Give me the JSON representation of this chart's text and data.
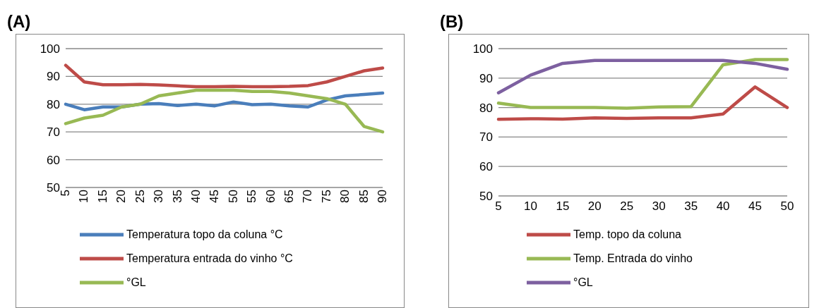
{
  "chart_data": [
    {
      "type": "line",
      "title": "(A)",
      "categories": [
        "5",
        "10",
        "15",
        "20",
        "25",
        "30",
        "35",
        "40",
        "45",
        "50",
        "55",
        "60",
        "65",
        "70",
        "75",
        "80",
        "85",
        "90"
      ],
      "ylim": [
        50,
        100
      ],
      "yticks": [
        50,
        60,
        70,
        80,
        90,
        100
      ],
      "grid": "y",
      "legend": "bottom",
      "marker": "none",
      "line_style": "solid",
      "series": [
        {
          "name": "Temperatura topo da coluna °C",
          "color": "#4a7ebb",
          "values": [
            80,
            78,
            79,
            79,
            80,
            80.2,
            79.5,
            80,
            79.4,
            80.8,
            79.8,
            80,
            79.4,
            79,
            81.5,
            83,
            83.5,
            84
          ]
        },
        {
          "name": "Temperatura entrada do vinho °C",
          "color": "#be4b48",
          "values": [
            94,
            88,
            87,
            87,
            87.1,
            86.9,
            86.6,
            86.3,
            86.3,
            86.4,
            86.3,
            86.3,
            86.4,
            86.7,
            88,
            90,
            92,
            93
          ]
        },
        {
          "name": "°GL",
          "color": "#98b954",
          "values": [
            73,
            75,
            76,
            79,
            80,
            83,
            84,
            85,
            85,
            85,
            84.6,
            84.6,
            84,
            83,
            82,
            80,
            72,
            70
          ]
        }
      ]
    },
    {
      "type": "line",
      "title": "(B)",
      "categories": [
        "5",
        "10",
        "15",
        "20",
        "25",
        "30",
        "35",
        "40",
        "45",
        "50"
      ],
      "ylim": [
        50,
        100
      ],
      "yticks": [
        50,
        60,
        70,
        80,
        90,
        100
      ],
      "grid": "y",
      "legend": "bottom",
      "marker": "none",
      "line_style": "solid",
      "series": [
        {
          "name": "Temp. topo da coluna",
          "color": "#be4b48",
          "values": [
            76,
            76.2,
            76.1,
            76.5,
            76.3,
            76.5,
            76.5,
            77.8,
            87,
            80
          ]
        },
        {
          "name": "Temp. Entrada do vinho",
          "color": "#98b954",
          "values": [
            81.5,
            80,
            80,
            80,
            79.8,
            80.2,
            80.3,
            94.5,
            96.3,
            96.3
          ]
        },
        {
          "name": "°GL",
          "color": "#7d60a0",
          "values": [
            85,
            91,
            95,
            96,
            96,
            96,
            96,
            96,
            95,
            93
          ]
        }
      ]
    }
  ]
}
